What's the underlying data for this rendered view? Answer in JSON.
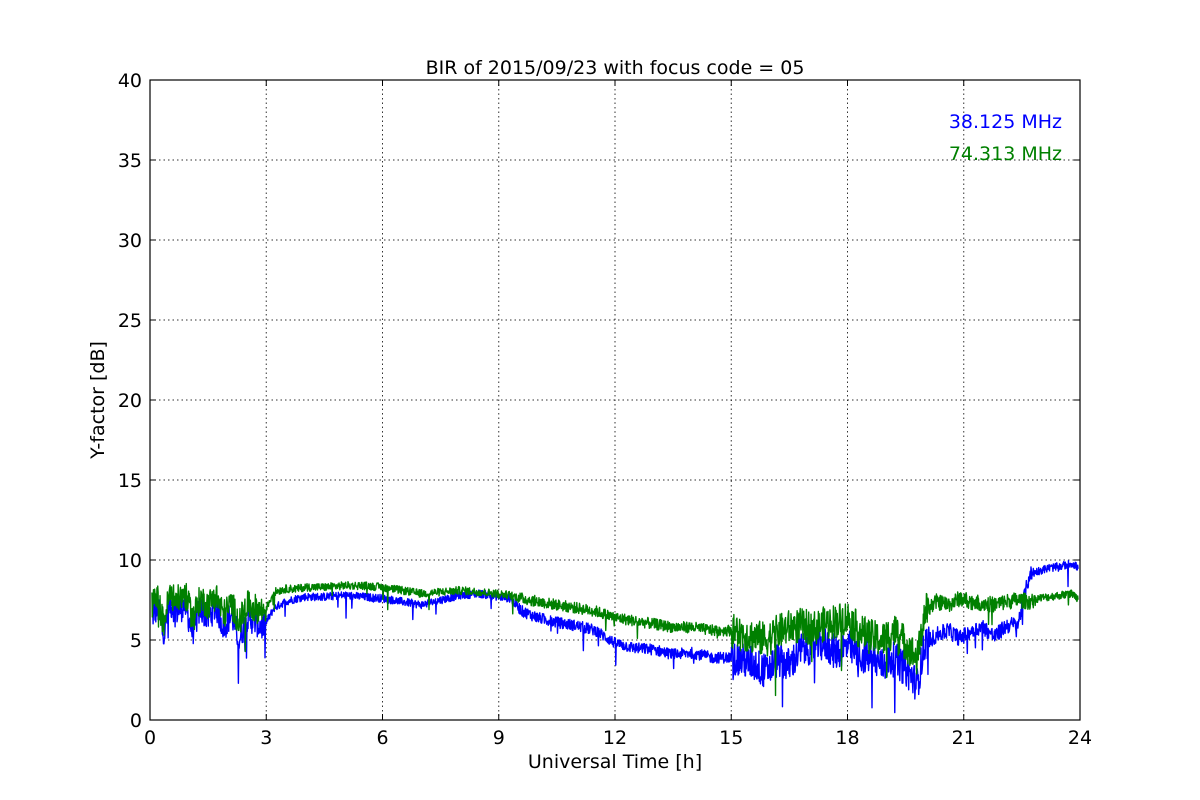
{
  "chart_data": {
    "type": "line",
    "title": "BIR of 2015/09/23 with focus code = 05",
    "xlabel": "Universal Time [h]",
    "ylabel": "Y-factor [dB]",
    "xlim": [
      0,
      24
    ],
    "ylim": [
      0,
      40
    ],
    "xticks": [
      0,
      3,
      6,
      9,
      12,
      15,
      18,
      21,
      24
    ],
    "yticks": [
      0,
      5,
      10,
      15,
      20,
      25,
      30,
      35,
      40
    ],
    "grid": true,
    "legend_placement": "top-right",
    "series": [
      {
        "name": "38.125 MHz",
        "color": "#0000ff",
        "x": [
          0.05,
          0.2,
          0.35,
          0.5,
          0.7,
          0.9,
          1.1,
          1.3,
          1.5,
          1.7,
          1.9,
          2.1,
          2.3,
          2.5,
          2.7,
          2.9,
          3.0,
          3.2,
          3.5,
          3.8,
          4.0,
          4.5,
          5.0,
          5.5,
          6.0,
          6.5,
          7.0,
          7.5,
          8.0,
          8.5,
          9.0,
          9.3,
          9.6,
          10.0,
          10.5,
          11.0,
          11.5,
          12.0,
          12.5,
          13.0,
          13.5,
          14.0,
          14.5,
          15.0,
          15.3,
          15.6,
          15.9,
          16.2,
          16.5,
          16.8,
          17.1,
          17.4,
          17.7,
          18.0,
          18.3,
          18.6,
          18.9,
          19.2,
          19.5,
          19.8,
          20.0,
          20.3,
          20.6,
          20.9,
          21.2,
          21.5,
          21.8,
          22.1,
          22.4,
          22.7,
          22.9,
          23.2,
          23.5,
          23.8,
          23.95
        ],
        "y": [
          6.5,
          7.0,
          5.2,
          7.3,
          6.8,
          7.2,
          5.5,
          7.0,
          6.4,
          7.1,
          5.8,
          6.6,
          5.0,
          6.4,
          6.2,
          5.8,
          6.1,
          7.0,
          7.4,
          7.6,
          7.7,
          7.7,
          7.8,
          7.7,
          7.6,
          7.4,
          7.2,
          7.5,
          7.8,
          7.9,
          7.7,
          7.6,
          6.8,
          6.4,
          6.1,
          5.9,
          5.6,
          4.8,
          4.5,
          4.4,
          4.1,
          4.2,
          3.9,
          3.9,
          3.7,
          3.5,
          3.0,
          3.8,
          3.4,
          4.4,
          4.6,
          4.8,
          4.2,
          4.6,
          4.0,
          3.9,
          3.4,
          3.8,
          3.2,
          2.2,
          4.8,
          5.3,
          5.6,
          5.1,
          5.6,
          5.8,
          5.2,
          5.9,
          6.0,
          9.1,
          9.3,
          9.5,
          9.6,
          9.8,
          9.5
        ]
      },
      {
        "name": "74.313 MHz",
        "color": "#008000",
        "x": [
          0.05,
          0.2,
          0.35,
          0.5,
          0.7,
          0.9,
          1.1,
          1.3,
          1.5,
          1.7,
          1.9,
          2.1,
          2.3,
          2.5,
          2.7,
          2.9,
          3.0,
          3.2,
          3.5,
          3.8,
          4.0,
          4.5,
          5.0,
          5.5,
          6.0,
          6.5,
          7.0,
          7.5,
          8.0,
          8.5,
          9.0,
          9.3,
          9.6,
          10.0,
          10.5,
          11.0,
          11.5,
          12.0,
          12.5,
          13.0,
          13.5,
          14.0,
          14.5,
          15.0,
          15.3,
          15.6,
          15.9,
          16.2,
          16.5,
          16.8,
          17.1,
          17.4,
          17.7,
          18.0,
          18.3,
          18.6,
          18.9,
          19.2,
          19.5,
          19.8,
          20.0,
          20.3,
          20.6,
          20.9,
          21.2,
          21.5,
          21.8,
          22.1,
          22.4,
          22.7,
          22.9,
          23.2,
          23.5,
          23.8,
          23.95
        ],
        "y": [
          7.2,
          7.6,
          6.0,
          7.8,
          7.5,
          7.9,
          6.4,
          7.6,
          7.2,
          7.8,
          6.6,
          7.3,
          6.1,
          7.2,
          7.0,
          6.8,
          7.0,
          8.0,
          8.2,
          8.2,
          8.3,
          8.3,
          8.4,
          8.4,
          8.3,
          8.1,
          7.9,
          8.0,
          8.1,
          8.0,
          7.9,
          7.8,
          7.6,
          7.4,
          7.2,
          7.0,
          6.8,
          6.4,
          6.2,
          6.0,
          5.8,
          5.8,
          5.6,
          5.6,
          5.4,
          5.2,
          5.0,
          5.5,
          5.8,
          5.9,
          5.7,
          6.0,
          6.2,
          6.4,
          5.6,
          5.2,
          5.0,
          5.6,
          4.8,
          3.8,
          6.8,
          7.4,
          7.2,
          7.6,
          7.4,
          7.3,
          7.2,
          7.4,
          7.5,
          7.4,
          7.6,
          7.7,
          7.8,
          7.9,
          7.6
        ]
      }
    ]
  }
}
